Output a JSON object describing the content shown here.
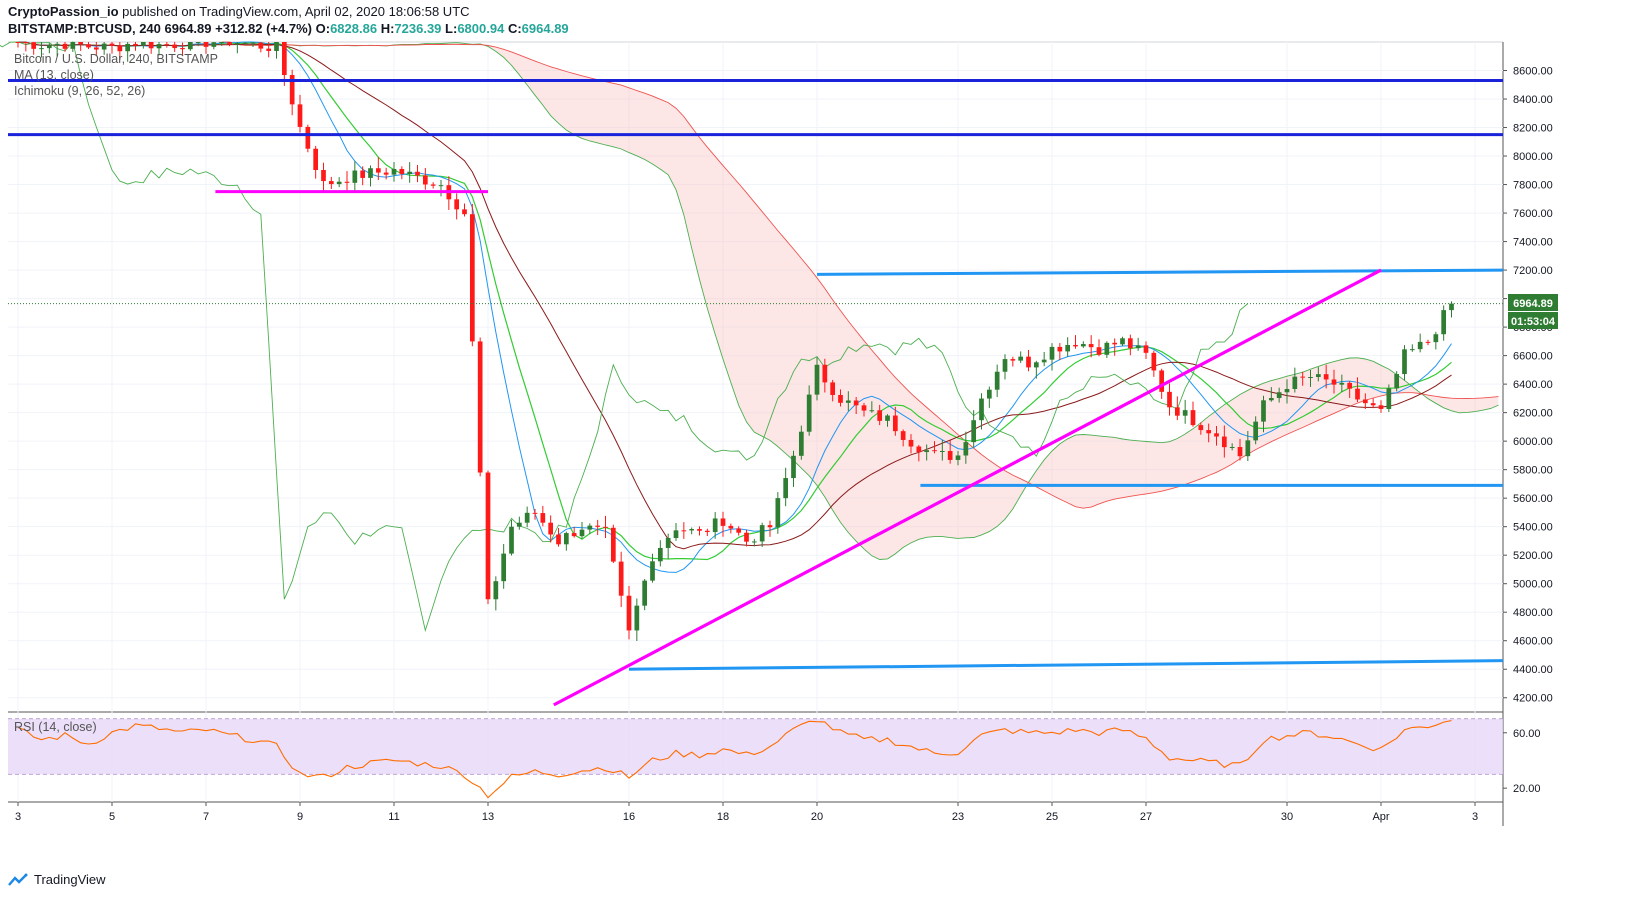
{
  "header": {
    "publisher": "CryptoPassion_io",
    "published_text": "published on TradingView.com, April 02, 2020 18:06:58 UTC",
    "symbol": "BITSTAMP:BTCUSD, 240",
    "last": "6964.89",
    "change": "+312.82 (+4.7%)",
    "o_label": "O:",
    "o_value": "6828.86",
    "h_label": "H:",
    "h_value": "7236.39",
    "l_label": "L:",
    "l_value": "6800.94",
    "c_label": "C:",
    "c_value": "6964.89"
  },
  "legend": {
    "title": "Bitcoin / U.S. Dollar, 240, BITSTAMP",
    "ma": "MA (13, close)",
    "ichimoku": "Ichimoku (9, 26, 52, 26)",
    "rsi": "RSI (14, close)"
  },
  "price_tag": {
    "value": "6964.89",
    "countdown": "01:53:04"
  },
  "footer": {
    "brand": "TradingView"
  },
  "colors": {
    "up": "#2e7d32",
    "down": "#ff1a1a",
    "horizontal_lines": "#1a23d9",
    "channel_lines": "#2196f3",
    "trend_lines": "#ff00ff",
    "ma": "#33cc33",
    "tenkan": "#2196f3",
    "kijun": "#8b1a1a",
    "lagging": "#4caf50",
    "rsi": "#ff6d00",
    "rsi_band": "#e6d4f7"
  },
  "chart_data": [
    {
      "type": "line",
      "name": "price",
      "ylim": [
        4100,
        8800
      ],
      "yticks": [
        4200,
        4400,
        4600,
        4800,
        5000,
        5200,
        5400,
        5600,
        5800,
        6000,
        6200,
        6400,
        6600,
        6800,
        7000,
        7200,
        7400,
        7600,
        7800,
        8000,
        8200,
        8400,
        8600
      ],
      "ytick_labels": [
        "4200.00",
        "4400.00",
        "4600.00",
        "4800.00",
        "5000.00",
        "5200.00",
        "5400.00",
        "5600.00",
        "5800.00",
        "6000.00",
        "6200.00",
        "6400.00",
        "6600.00",
        "6800.00",
        "7000.00",
        "7200.00",
        "7400.00",
        "7600.00",
        "7800.00",
        "8000.00",
        "8200.00",
        "8400.00",
        "8600.00"
      ],
      "xticks": [
        {
          "label": "3",
          "day": 0
        },
        {
          "label": "5",
          "day": 2
        },
        {
          "label": "7",
          "day": 4
        },
        {
          "label": "9",
          "day": 6
        },
        {
          "label": "11",
          "day": 8
        },
        {
          "label": "13",
          "day": 10
        },
        {
          "label": "16",
          "day": 13
        },
        {
          "label": "18",
          "day": 15
        },
        {
          "label": "20",
          "day": 17
        },
        {
          "label": "23",
          "day": 20
        },
        {
          "label": "25",
          "day": 22
        },
        {
          "label": "27",
          "day": 24
        },
        {
          "label": "30",
          "day": 27
        },
        {
          "label": "Apr",
          "day": 29
        },
        {
          "label": "3",
          "day": 31
        }
      ],
      "series": [
        {
          "name": "close",
          "x": [
            0,
            0.5,
            1,
            1.5,
            2,
            2.5,
            3,
            3.5,
            4,
            4.5,
            5,
            5.5,
            6,
            6.5,
            7,
            7.5,
            8,
            8.5,
            9,
            9.5,
            10,
            10.5,
            11,
            11.5,
            12,
            12.5,
            13,
            13.5,
            14,
            14.5,
            15,
            15.5,
            16,
            16.5,
            17,
            17.5,
            18,
            18.5,
            19,
            19.5,
            20,
            20.5,
            21,
            21.5,
            22,
            22.5,
            23,
            23.5,
            24,
            24.5,
            25,
            25.5,
            26,
            26.5,
            27,
            27.5,
            28,
            28.5,
            29,
            29.5,
            30,
            30.5
          ],
          "y": [
            8800,
            8780,
            8790,
            8770,
            8760,
            8800,
            8780,
            8790,
            8800,
            8810,
            8780,
            8760,
            8200,
            7800,
            7850,
            7880,
            7900,
            7850,
            7800,
            7600,
            4850,
            5400,
            5500,
            5300,
            5400,
            5350,
            4650,
            5200,
            5400,
            5350,
            5450,
            5300,
            5400,
            5900,
            6500,
            6300,
            6200,
            6150,
            6000,
            5900,
            5900,
            6300,
            6600,
            6550,
            6650,
            6700,
            6650,
            6700,
            6600,
            6250,
            6150,
            6050,
            5900,
            6250,
            6400,
            6450,
            6400,
            6300,
            6200,
            6600,
            6700,
            6965
          ]
        },
        {
          "name": "resistance_8530",
          "y": [
            8530
          ]
        },
        {
          "name": "resistance_8150",
          "y": [
            8150
          ]
        },
        {
          "name": "support_7750",
          "y": [
            7750
          ]
        },
        {
          "name": "channel_top",
          "y": [
            7170,
            7200
          ]
        },
        {
          "name": "channel_mid",
          "y": [
            5690
          ]
        },
        {
          "name": "channel_bottom",
          "y": [
            4400,
            4460
          ]
        },
        {
          "name": "trendline",
          "y": [
            4150,
            7200
          ]
        }
      ]
    },
    {
      "type": "line",
      "name": "rsi",
      "ylim": [
        10,
        75
      ],
      "yticks": [
        20,
        60
      ],
      "ytick_labels": [
        "20.00",
        "60.00"
      ],
      "band": [
        30,
        70
      ],
      "series": [
        {
          "name": "rsi",
          "x": [
            0,
            0.5,
            1,
            1.5,
            2,
            2.5,
            3,
            3.5,
            4,
            4.5,
            5,
            5.5,
            6,
            6.5,
            7,
            7.5,
            8,
            8.5,
            9,
            9.5,
            10,
            10.5,
            11,
            11.5,
            12,
            12.5,
            13,
            13.5,
            14,
            14.5,
            15,
            15.5,
            16,
            16.5,
            17,
            17.5,
            18,
            18.5,
            19,
            19.5,
            20,
            20.5,
            21,
            21.5,
            22,
            22.5,
            23,
            23.5,
            24,
            24.5,
            25,
            25.5,
            26,
            26.5,
            27,
            27.5,
            28,
            28.5,
            29,
            29.5,
            30,
            30.5
          ],
          "y": [
            62,
            55,
            58,
            52,
            60,
            65,
            63,
            60,
            62,
            58,
            55,
            50,
            30,
            28,
            35,
            38,
            40,
            38,
            36,
            30,
            15,
            28,
            32,
            30,
            33,
            35,
            28,
            40,
            45,
            44,
            48,
            44,
            50,
            62,
            70,
            60,
            55,
            55,
            50,
            45,
            46,
            58,
            62,
            60,
            60,
            62,
            60,
            62,
            56,
            42,
            40,
            38,
            36,
            55,
            58,
            60,
            57,
            52,
            48,
            62,
            65,
            70
          ]
        }
      ]
    }
  ]
}
